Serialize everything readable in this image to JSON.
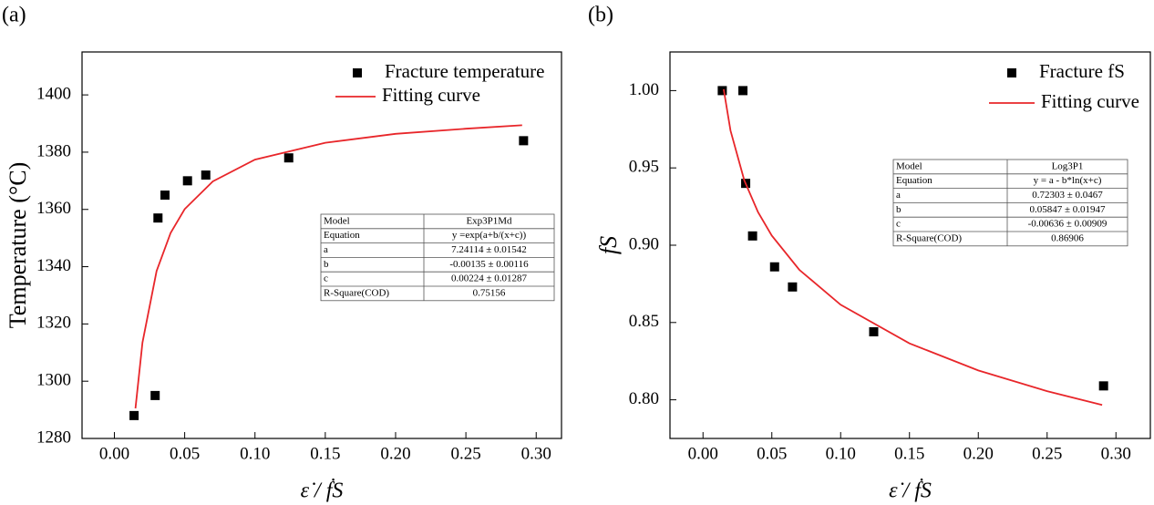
{
  "chart_data": [
    {
      "type": "scatter",
      "panel_label": "(a)",
      "xlabel": "ε̇ / ḟS",
      "ylabel": "Temperature (°C)",
      "xlim": [
        -0.023,
        0.318
      ],
      "ylim": [
        1280,
        1415
      ],
      "xticks": [
        {
          "value": 0,
          "label": "0.00"
        },
        {
          "value": 0.05,
          "label": "0.05"
        },
        {
          "value": 0.1,
          "label": "0.10"
        },
        {
          "value": 0.15,
          "label": "0.15"
        },
        {
          "value": 0.2,
          "label": "0.20"
        },
        {
          "value": 0.25,
          "label": "0.25"
        },
        {
          "value": 0.3,
          "label": "0.30"
        }
      ],
      "yticks": [
        1280,
        1300,
        1320,
        1340,
        1360,
        1380,
        1400
      ],
      "series": [
        {
          "name": "Fracture temperature",
          "color": "#000000",
          "marker": "square",
          "x": [
            0.014,
            0.029,
            0.031,
            0.036,
            0.052,
            0.065,
            0.124,
            0.291
          ],
          "values": [
            1288,
            1295,
            1357,
            1365,
            1370,
            1372,
            1378,
            1384
          ]
        },
        {
          "name": "Fitting curve",
          "color": "#e8262a",
          "marker": "line",
          "x": [
            0.015,
            0.02,
            0.03,
            0.04,
            0.05,
            0.07,
            0.1,
            0.15,
            0.2,
            0.25,
            0.29
          ],
          "values": [
            1290.5,
            1313.5,
            1338.5,
            1351.8,
            1360.1,
            1369.8,
            1377.4,
            1383.3,
            1386.4,
            1388.2,
            1389.4
          ]
        }
      ],
      "table": {
        "rows": [
          [
            "Model",
            "Exp3P1Md"
          ],
          [
            "Equation",
            "y =exp(a+b/(x+c))"
          ],
          [
            "a",
            "7.24114 ± 0.01542"
          ],
          [
            "b",
            "-0.00135 ± 0.00116"
          ],
          [
            "c",
            "0.00224 ± 0.01287"
          ],
          [
            "R-Square(COD)",
            "0.75156"
          ]
        ]
      }
    },
    {
      "type": "scatter",
      "panel_label": "(b)",
      "xlabel": "ε̇ / ḟS",
      "ylabel": "fS",
      "xlim": [
        -0.024,
        0.325
      ],
      "ylim": [
        0.775,
        1.025
      ],
      "xticks": [
        {
          "value": 0,
          "label": "0.00"
        },
        {
          "value": 0.05,
          "label": "0.05"
        },
        {
          "value": 0.1,
          "label": "0.10"
        },
        {
          "value": 0.15,
          "label": "0.15"
        },
        {
          "value": 0.2,
          "label": "0.20"
        },
        {
          "value": 0.25,
          "label": "0.25"
        },
        {
          "value": 0.3,
          "label": "0.30"
        }
      ],
      "yticks": [
        {
          "value": 0.8,
          "label": "0.80"
        },
        {
          "value": 0.85,
          "label": "0.85"
        },
        {
          "value": 0.9,
          "label": "0.90"
        },
        {
          "value": 0.95,
          "label": "0.95"
        },
        {
          "value": 1,
          "label": "1.00"
        }
      ],
      "series": [
        {
          "name": "Fracture fS",
          "color": "#000000",
          "marker": "square",
          "x": [
            0.014,
            0.029,
            0.031,
            0.036,
            0.052,
            0.065,
            0.124,
            0.291
          ],
          "values": [
            1.0,
            1.0,
            0.94,
            0.906,
            0.886,
            0.873,
            0.844,
            0.809
          ]
        },
        {
          "name": "Fitting curve",
          "color": "#e8262a",
          "marker": "line",
          "x": [
            0.015,
            0.02,
            0.03,
            0.04,
            0.05,
            0.07,
            0.1,
            0.15,
            0.2,
            0.25,
            0.29
          ],
          "values": [
            1.0009,
            0.9742,
            0.942,
            0.9214,
            0.9062,
            0.8841,
            0.8615,
            0.8365,
            0.819,
            0.8056,
            0.7967
          ]
        }
      ],
      "table": {
        "rows": [
          [
            "Model",
            "Log3P1"
          ],
          [
            "Equation",
            "y = a - b*ln(x+c)"
          ],
          [
            "a",
            "0.72303 ± 0.0467"
          ],
          [
            "b",
            "0.05847 ± 0.01947"
          ],
          [
            "c",
            "-0.00636 ± 0.00909"
          ],
          [
            "R-Square(COD)",
            "0.86906"
          ]
        ]
      }
    }
  ]
}
